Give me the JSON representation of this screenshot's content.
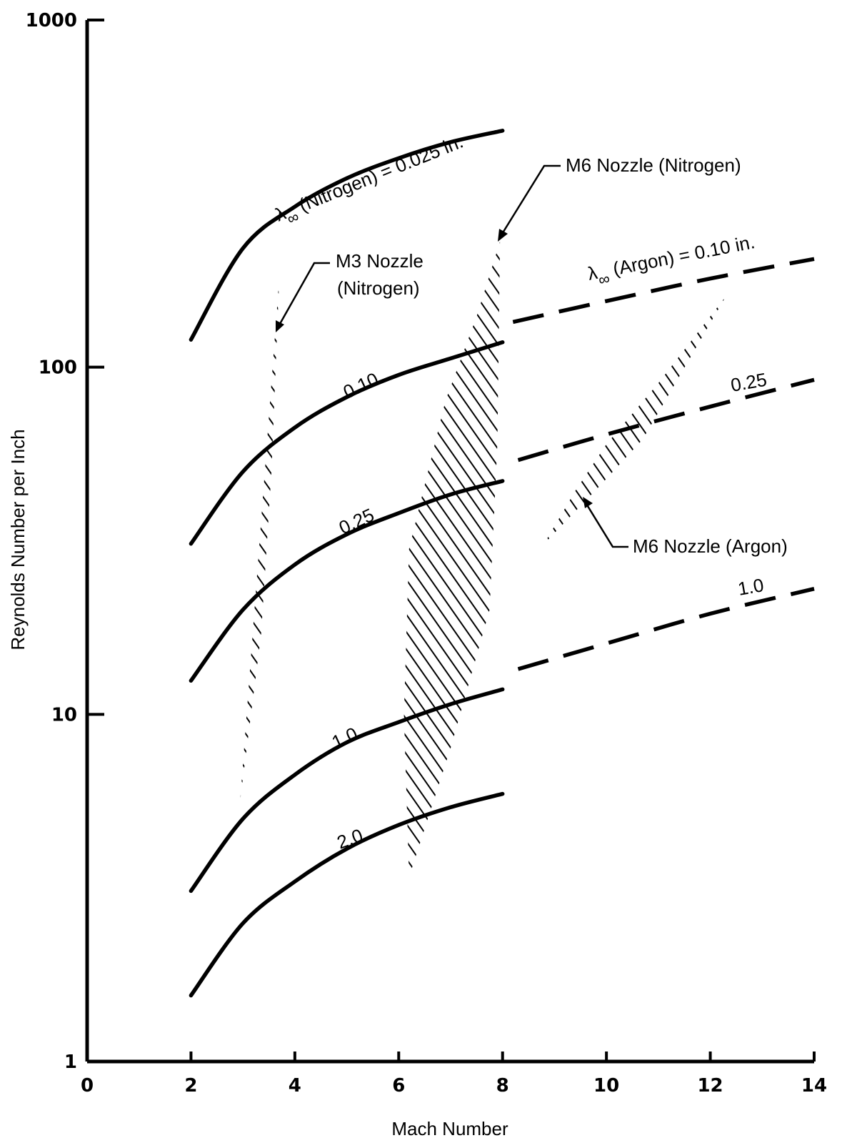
{
  "chart_data": {
    "type": "line",
    "title": "",
    "xlabel": "Mach Number",
    "ylabel": "Reynolds Number per Inch",
    "xlim": [
      0,
      14
    ],
    "ylim": [
      1,
      1000
    ],
    "yscale": "log",
    "grid": false,
    "x_ticks": [
      "0",
      "2",
      "4",
      "6",
      "8",
      "10",
      "12",
      "14"
    ],
    "y_ticks": [
      "1",
      "10",
      "100",
      "1000"
    ],
    "series": [
      {
        "label": "λ∞ (Nitrogen) = 0.025 in.",
        "gas": "Nitrogen",
        "line": "solid",
        "x": [
          2,
          3,
          4,
          5,
          6,
          7,
          8
        ],
        "y": [
          120,
          220,
          290,
          350,
          400,
          445,
          480
        ]
      },
      {
        "label": "0.10",
        "gas": "Nitrogen",
        "line": "solid",
        "x": [
          2,
          3,
          4,
          5,
          6,
          7,
          8
        ],
        "y": [
          31,
          50,
          67,
          82,
          95,
          106,
          118
        ]
      },
      {
        "label": "0.25",
        "gas": "Nitrogen",
        "line": "solid",
        "x": [
          2,
          3,
          4,
          5,
          6,
          7,
          8
        ],
        "y": [
          12.5,
          20,
          27,
          33,
          38,
          43,
          47
        ]
      },
      {
        "label": "1.0",
        "gas": "Nitrogen",
        "line": "solid",
        "x": [
          2,
          3,
          4,
          5,
          6,
          7,
          8
        ],
        "y": [
          3.1,
          5,
          6.7,
          8.3,
          9.5,
          10.7,
          11.8
        ]
      },
      {
        "label": "2.0",
        "gas": "Nitrogen",
        "line": "solid",
        "x": [
          2,
          3,
          4,
          5,
          6,
          7,
          8
        ],
        "y": [
          1.55,
          2.5,
          3.3,
          4.1,
          4.8,
          5.4,
          5.9
        ]
      },
      {
        "label": "λ∞ (Argon) = 0.10 in.",
        "gas": "Argon",
        "line": "dashed",
        "x": [
          8.2,
          10,
          12,
          14
        ],
        "y": [
          135,
          155,
          180,
          205
        ]
      },
      {
        "label": "0.25",
        "gas": "Argon",
        "line": "dashed",
        "x": [
          8.3,
          10,
          12,
          14
        ],
        "y": [
          54,
          64,
          77,
          92
        ]
      },
      {
        "label": "1.0",
        "gas": "Argon",
        "line": "dashed",
        "x": [
          8.3,
          10,
          12,
          14
        ],
        "y": [
          13.5,
          16,
          19.5,
          23
        ]
      }
    ],
    "regions": [
      {
        "label": "M3 Nozzle (Nitrogen)",
        "polygon": [
          [
            3.7,
            180
          ],
          [
            3.55,
            50
          ],
          [
            3.35,
            17
          ],
          [
            2.95,
            5.7
          ]
        ]
      },
      {
        "label": "M6 Nozzle (Nitrogen)",
        "polygon": [
          [
            7.95,
            230
          ],
          [
            7.9,
            60
          ],
          [
            7.75,
            20
          ],
          [
            7.0,
            8
          ],
          [
            6.2,
            3.4
          ],
          [
            6.1,
            10
          ],
          [
            6.2,
            30
          ],
          [
            6.9,
            80
          ],
          [
            7.5,
            140
          ]
        ]
      },
      {
        "label": "M6 Nozzle (Argon)",
        "polygon": [
          [
            12.3,
            160
          ],
          [
            10.7,
            62
          ],
          [
            9.9,
            46
          ],
          [
            8.8,
            31
          ],
          [
            9.4,
            44
          ],
          [
            10.0,
            60
          ],
          [
            11.0,
            90
          ]
        ]
      }
    ],
    "annotations": [
      {
        "key": "m3",
        "text_lines": [
          "M3 Nozzle",
          "(Nitrogen)"
        ]
      },
      {
        "key": "m6n",
        "text_lines": [
          "M6 Nozzle (Nitrogen)"
        ]
      },
      {
        "key": "m6a",
        "text_lines": [
          "M6 Nozzle (Argon)"
        ]
      }
    ],
    "curve_labels": [
      {
        "key": "n025",
        "prefix": "λ",
        "subscript": "∞",
        "text": " (Nitrogen) = 0.025 in."
      },
      {
        "key": "a010",
        "prefix": "λ",
        "subscript": "∞",
        "text": " (Argon) = 0.10 in."
      },
      {
        "key": "n010",
        "text": "0.10"
      },
      {
        "key": "n25",
        "text": "0.25"
      },
      {
        "key": "n1",
        "text": "1.0"
      },
      {
        "key": "n2",
        "text": "2.0"
      },
      {
        "key": "a25",
        "text": "0.25"
      },
      {
        "key": "a1",
        "text": "1.0"
      }
    ]
  }
}
